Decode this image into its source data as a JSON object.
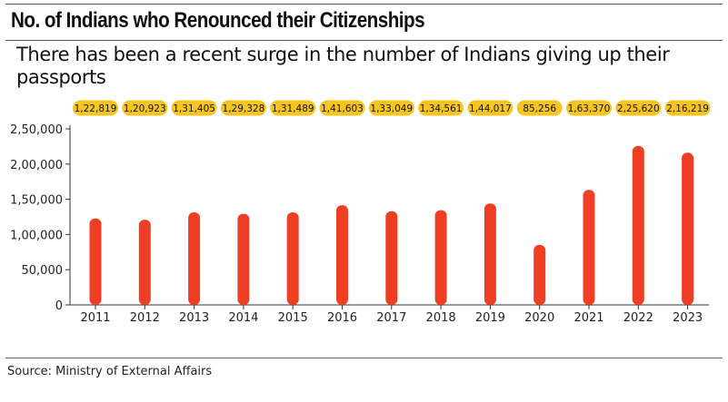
{
  "title": "No. of Indians who Renounced their Citizenships",
  "subtitle": "There has been a recent surge in the number of Indians giving up their passports",
  "source": "Source: Ministry of External Affairs",
  "colors": {
    "bar": "#ee3f24",
    "pill": "#f7c51f",
    "axis": "#333333"
  },
  "chart_data": {
    "type": "bar",
    "categories": [
      "2011",
      "2012",
      "2013",
      "2014",
      "2015",
      "2016",
      "2017",
      "2018",
      "2019",
      "2020",
      "2021",
      "2022",
      "2023"
    ],
    "values": [
      122819,
      120923,
      131405,
      129328,
      131489,
      141603,
      133049,
      134561,
      144017,
      85256,
      163370,
      225620,
      216219
    ],
    "data_labels": [
      "1,22,819",
      "1,20,923",
      "1,31,405",
      "1,29,328",
      "1,31,489",
      "1,41,603",
      "1,33,049",
      "1,34,561",
      "1,44,017",
      "85,256",
      "1,63,370",
      "2,25,620",
      "2,16,219"
    ],
    "yticks": [
      0,
      50000,
      100000,
      150000,
      200000,
      250000
    ],
    "ytick_labels": [
      "0",
      "50,000",
      "1,00,000",
      "1,50,000",
      "2,00,000",
      "2,50,000"
    ],
    "ylim": [
      0,
      250000
    ],
    "grid": false
  }
}
